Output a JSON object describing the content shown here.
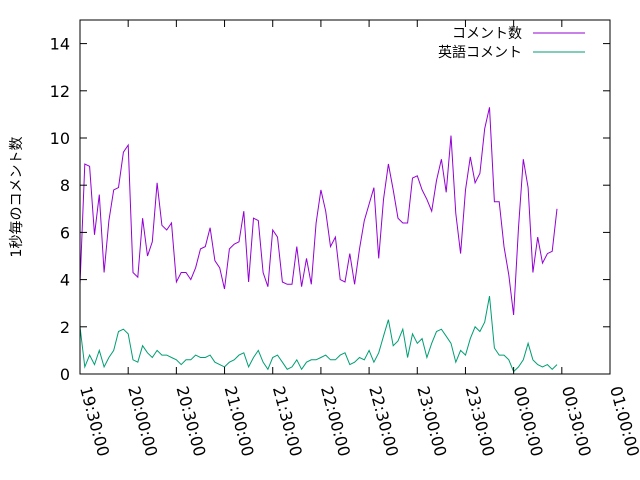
{
  "chart_data": {
    "type": "line",
    "title": "",
    "xlabel": "",
    "ylabel": "1秒毎のコメント数",
    "xlim": [
      "19:30:00",
      "01:00:00"
    ],
    "ylim": [
      0,
      15
    ],
    "x_ticks": [
      "19:30:00",
      "20:00:00",
      "20:30:00",
      "21:00:00",
      "21:30:00",
      "22:00:00",
      "22:30:00",
      "23:00:00",
      "23:30:00",
      "00:00:00",
      "00:30:00",
      "01:00:00"
    ],
    "y_ticks": [
      "0",
      "2",
      "4",
      "6",
      "8",
      "10",
      "12",
      "14"
    ],
    "legend_position": "top-right",
    "grid": false,
    "sample_interval_min": 3,
    "series": [
      {
        "name": "コメント数",
        "color": "#9400d3",
        "values": [
          3.8,
          8.9,
          8.8,
          5.9,
          7.6,
          4.3,
          6.5,
          7.8,
          7.9,
          9.4,
          9.7,
          4.3,
          4.1,
          6.6,
          5.0,
          5.6,
          8.1,
          6.3,
          6.1,
          6.4,
          3.9,
          4.3,
          4.3,
          4.0,
          4.5,
          5.3,
          5.4,
          6.2,
          4.8,
          4.5,
          3.6,
          5.3,
          5.5,
          5.6,
          6.9,
          3.9,
          6.6,
          6.5,
          4.3,
          3.7,
          6.1,
          5.8,
          3.9,
          3.8,
          3.8,
          5.4,
          3.7,
          4.9,
          3.8,
          6.4,
          7.8,
          6.9,
          5.4,
          5.8,
          4.0,
          3.9,
          5.1,
          3.8,
          5.3,
          6.5,
          7.2,
          7.9,
          4.9,
          7.4,
          8.9,
          7.8,
          6.6,
          6.4,
          6.4,
          8.3,
          8.4,
          7.8,
          7.4,
          6.9,
          8.2,
          9.1,
          7.7,
          10.1,
          6.8,
          5.1,
          7.8,
          9.2,
          8.1,
          8.5,
          10.4,
          11.3,
          7.3,
          7.3,
          5.4,
          4.2,
          2.5,
          6.2,
          9.1,
          7.9,
          4.3,
          5.8,
          4.7,
          5.1,
          5.2,
          7.0
        ]
      },
      {
        "name": "英語コメント",
        "color": "#009e73",
        "values": [
          2.0,
          0.3,
          0.8,
          0.4,
          1.0,
          0.3,
          0.7,
          1.0,
          1.8,
          1.9,
          1.7,
          0.6,
          0.5,
          1.2,
          0.9,
          0.7,
          1.0,
          0.8,
          0.8,
          0.7,
          0.6,
          0.4,
          0.6,
          0.6,
          0.8,
          0.7,
          0.7,
          0.8,
          0.5,
          0.4,
          0.3,
          0.5,
          0.6,
          0.8,
          0.9,
          0.3,
          0.7,
          1.0,
          0.5,
          0.2,
          0.7,
          0.8,
          0.5,
          0.2,
          0.3,
          0.6,
          0.2,
          0.5,
          0.6,
          0.6,
          0.7,
          0.8,
          0.6,
          0.6,
          0.8,
          0.9,
          0.4,
          0.5,
          0.7,
          0.6,
          1.0,
          0.5,
          0.9,
          1.6,
          2.3,
          1.2,
          1.4,
          1.9,
          0.7,
          1.7,
          1.3,
          1.5,
          0.7,
          1.3,
          1.8,
          1.9,
          1.6,
          1.3,
          0.5,
          1.0,
          0.8,
          1.5,
          2.0,
          1.8,
          2.2,
          3.3,
          1.1,
          0.8,
          0.8,
          0.6,
          0.1,
          0.3,
          0.6,
          1.3,
          0.6,
          0.4,
          0.3,
          0.4,
          0.2,
          0.4
        ]
      }
    ]
  }
}
